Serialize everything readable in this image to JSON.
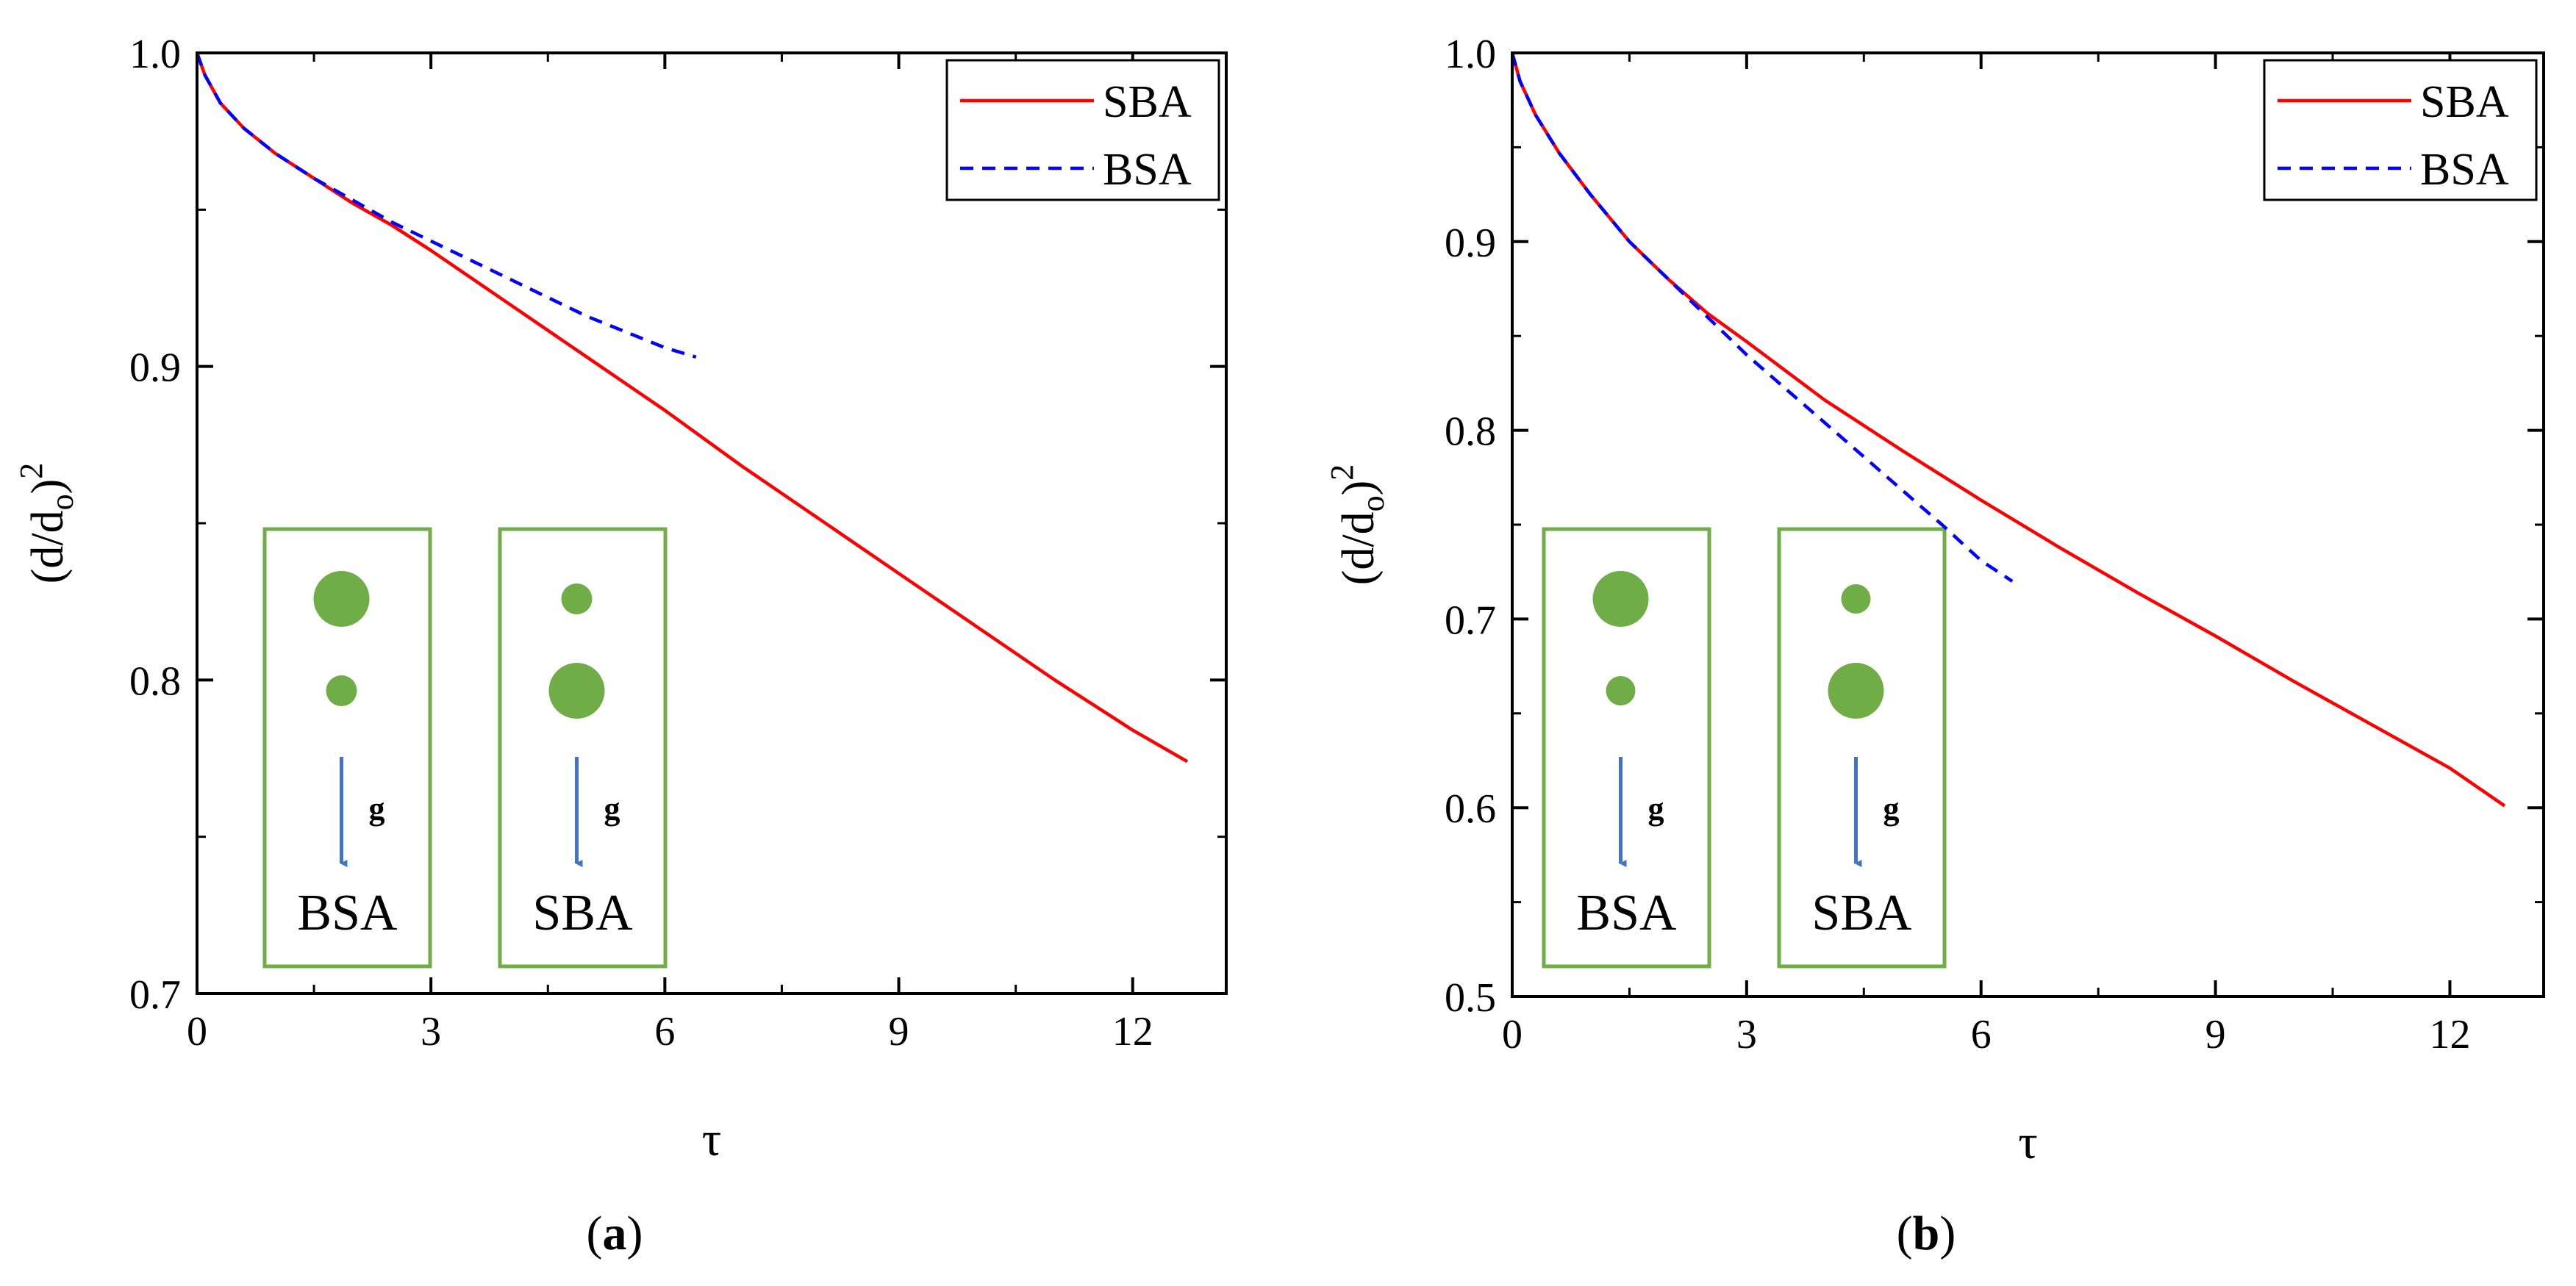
{
  "chart_data": [
    {
      "type": "line",
      "panel_label": "a",
      "title": "",
      "xlabel": "τ",
      "ylabel_main": "(d/d",
      "ylabel_sub": "o",
      "ylabel_close": ")",
      "ylabel_sup": "2",
      "xlim": [
        0,
        13.2
      ],
      "ylim": [
        0.7,
        1.0
      ],
      "xticks": [
        0,
        3,
        6,
        9,
        12
      ],
      "xtick_labels": [
        "0",
        "3",
        "6",
        "9",
        "12"
      ],
      "yticks": [
        0.7,
        0.8,
        0.9,
        1.0
      ],
      "ytick_labels": [
        "0.7",
        "0.8",
        "0.9",
        "1.0"
      ],
      "legend_position": "top-right",
      "series": [
        {
          "name": "SBA",
          "color": "#ff0000",
          "style": "solid",
          "x": [
            0,
            0.1,
            0.3,
            0.6,
            1.0,
            1.5,
            2.0,
            2.5,
            3.0,
            4.0,
            5.0,
            6.0,
            7.0,
            8.0,
            9.0,
            10.0,
            11.0,
            12.0,
            12.7
          ],
          "y": [
            1.0,
            0.993,
            0.984,
            0.976,
            0.968,
            0.96,
            0.952,
            0.945,
            0.937,
            0.92,
            0.903,
            0.886,
            0.868,
            0.851,
            0.834,
            0.817,
            0.8,
            0.784,
            0.774
          ]
        },
        {
          "name": "BSA",
          "color": "#0000ff",
          "style": "dashed",
          "x": [
            0,
            0.1,
            0.3,
            0.6,
            1.0,
            1.5,
            2.0,
            2.5,
            3.0,
            3.5,
            4.0,
            4.5,
            5.0,
            5.5,
            6.0,
            6.4
          ],
          "y": [
            1.0,
            0.993,
            0.984,
            0.976,
            0.968,
            0.96,
            0.953,
            0.946,
            0.94,
            0.934,
            0.928,
            0.922,
            0.916,
            0.911,
            0.906,
            0.903
          ]
        }
      ],
      "insets": [
        {
          "label": "BSA",
          "g_label": "g",
          "top_drop": "large",
          "bottom_drop": "small"
        },
        {
          "label": "SBA",
          "g_label": "g",
          "top_drop": "small",
          "bottom_drop": "large"
        }
      ],
      "inset_fill_color": "#70ad47",
      "inset_border_color": "#70ad47",
      "arrow_color": "#4472c4"
    },
    {
      "type": "line",
      "panel_label": "b",
      "title": "",
      "xlabel": "τ",
      "ylabel_main": "(d/d",
      "ylabel_sub": "o",
      "ylabel_close": ")",
      "ylabel_sup": "2",
      "xlim": [
        0,
        13.2
      ],
      "ylim": [
        0.5,
        1.0
      ],
      "xticks": [
        0,
        3,
        6,
        9,
        12
      ],
      "xtick_labels": [
        "0",
        "3",
        "6",
        "9",
        "12"
      ],
      "yticks": [
        0.5,
        0.6,
        0.7,
        0.8,
        0.9,
        1.0
      ],
      "ytick_labels": [
        "0.5",
        "0.6",
        "0.7",
        "0.8",
        "0.9",
        "1.0"
      ],
      "legend_position": "top-right",
      "series": [
        {
          "name": "SBA",
          "color": "#ff0000",
          "style": "solid",
          "x": [
            0,
            0.1,
            0.3,
            0.6,
            1.0,
            1.5,
            2.0,
            2.5,
            3.0,
            4.0,
            5.0,
            6.0,
            7.0,
            8.0,
            9.0,
            10.0,
            11.0,
            12.0,
            12.7
          ],
          "y": [
            1.0,
            0.985,
            0.967,
            0.947,
            0.925,
            0.9,
            0.88,
            0.862,
            0.847,
            0.816,
            0.789,
            0.763,
            0.738,
            0.714,
            0.691,
            0.667,
            0.644,
            0.621,
            0.601
          ]
        },
        {
          "name": "BSA",
          "color": "#0000ff",
          "style": "dashed",
          "x": [
            0,
            0.1,
            0.3,
            0.6,
            1.0,
            1.5,
            2.0,
            2.5,
            3.0,
            3.5,
            4.0,
            4.5,
            5.0,
            5.5,
            6.0,
            6.4
          ],
          "y": [
            1.0,
            0.985,
            0.967,
            0.947,
            0.925,
            0.9,
            0.88,
            0.86,
            0.84,
            0.822,
            0.804,
            0.786,
            0.768,
            0.75,
            0.731,
            0.72
          ]
        }
      ],
      "insets": [
        {
          "label": "BSA",
          "g_label": "g",
          "top_drop": "large",
          "bottom_drop": "small"
        },
        {
          "label": "SBA",
          "g_label": "g",
          "top_drop": "small",
          "bottom_drop": "large"
        }
      ],
      "inset_fill_color": "#70ad47",
      "inset_border_color": "#70ad47",
      "arrow_color": "#4472c4"
    }
  ],
  "captions": {
    "open": "(",
    "a": "a",
    "b": "b",
    "close": ")"
  }
}
